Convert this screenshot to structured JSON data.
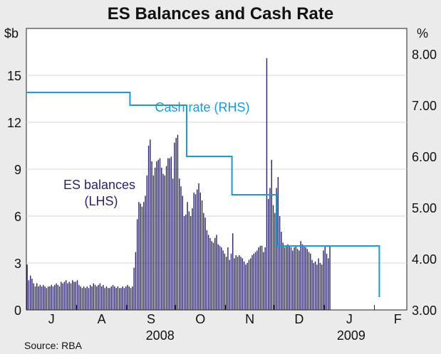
{
  "chart_data": {
    "type": "bar+step-line",
    "title": "ES Balances and Cash Rate",
    "y_left": {
      "unit_label": "$b",
      "ylim": [
        0,
        18
      ],
      "ticks": [
        0,
        3,
        6,
        9,
        12,
        15
      ]
    },
    "y_right": {
      "unit_label": "%",
      "ylim": [
        3.0,
        8.5
      ],
      "ticks": [
        "3.00",
        "4.00",
        "5.00",
        "6.00",
        "7.00",
        "8.00"
      ]
    },
    "x_months": [
      "J",
      "A",
      "S",
      "O",
      "N",
      "D",
      "J",
      "F"
    ],
    "x_years": [
      "2008",
      "2009"
    ],
    "series": [
      {
        "name": "ES balances",
        "axis": "left",
        "style": "bar",
        "color": "#2a2566",
        "start_date": "2008-07-01",
        "step_days": 1,
        "values": [
          2.9,
          1.9,
          2.2,
          2.0,
          1.7,
          1.5,
          1.7,
          1.5,
          1.6,
          1.5,
          1.6,
          1.5,
          1.4,
          1.5,
          1.5,
          1.6,
          1.5,
          1.6,
          1.7,
          1.6,
          1.5,
          1.8,
          1.7,
          1.8,
          1.9,
          1.7,
          1.8,
          1.7,
          1.9,
          1.8,
          1.8,
          1.9,
          1.6,
          1.5,
          1.4,
          1.5,
          1.4,
          1.5,
          1.4,
          1.6,
          1.5,
          1.7,
          1.6,
          1.5,
          1.6,
          1.7,
          1.5,
          1.6,
          1.4,
          1.5,
          1.4,
          1.4,
          1.5,
          1.6,
          1.5,
          1.4,
          1.5,
          1.4,
          1.4,
          1.5,
          1.4,
          1.5,
          1.6,
          1.5,
          1.4,
          1.5,
          2.7,
          3.7,
          5.8,
          6.9,
          6.8,
          6.6,
          6.9,
          7.3,
          8.6,
          10.5,
          10.9,
          9.5,
          8.6,
          9.1,
          9.5,
          9.6,
          9.7,
          9.1,
          8.7,
          8.6,
          9.2,
          9.7,
          9.7,
          9.8,
          8.4,
          10.7,
          11.0,
          11.2,
          8.4,
          7.9,
          7.3,
          6.0,
          6.1,
          6.9,
          6.3,
          6.0,
          6.5,
          7.5,
          7.4,
          7.7,
          8.1,
          7.5,
          7.0,
          6.2,
          5.9,
          5.1,
          4.8,
          4.6,
          4.4,
          4.3,
          4.6,
          4.8,
          4.2,
          4.1,
          4.0,
          3.8,
          3.6,
          3.4,
          4.0,
          3.2,
          3.6,
          4.9,
          3.3,
          3.5,
          3.4,
          3.5,
          3.4,
          3.3,
          3.1,
          2.9,
          3.0,
          3.2,
          3.3,
          3.5,
          3.6,
          3.7,
          3.8,
          4.0,
          4.1,
          4.1,
          3.7,
          4.0,
          16.1,
          7.1,
          7.8,
          9.6,
          6.7,
          6.2,
          7.8,
          8.5,
          6.0,
          5.0,
          4.3,
          4.0,
          4.1,
          4.2,
          4.1,
          4.0,
          3.8,
          4.0,
          4.1,
          3.9,
          3.8,
          4.4,
          4.2,
          4.1,
          4.0,
          3.9,
          3.7,
          3.6,
          3.2,
          3.0,
          3.1,
          2.9,
          3.3,
          3.0,
          2.9,
          3.8,
          4.1,
          3.6,
          3.3,
          4.1
        ]
      },
      {
        "name": "Cash rate",
        "axis": "right",
        "style": "step-line",
        "color": "#1a9bd7",
        "points": [
          {
            "date": "2008-07-01",
            "value": 7.25
          },
          {
            "date": "2008-09-03",
            "value": 7.0
          },
          {
            "date": "2008-10-08",
            "value": 6.0
          },
          {
            "date": "2008-11-05",
            "value": 5.25
          },
          {
            "date": "2008-12-03",
            "value": 4.25
          },
          {
            "date": "2009-02-04",
            "value": 3.25
          }
        ]
      }
    ],
    "annotations": [
      {
        "lines": [
          "ES balances",
          "(LHS)"
        ]
      },
      {
        "lines": [
          "Cash rate (RHS)"
        ]
      }
    ],
    "source": "Source: RBA"
  }
}
